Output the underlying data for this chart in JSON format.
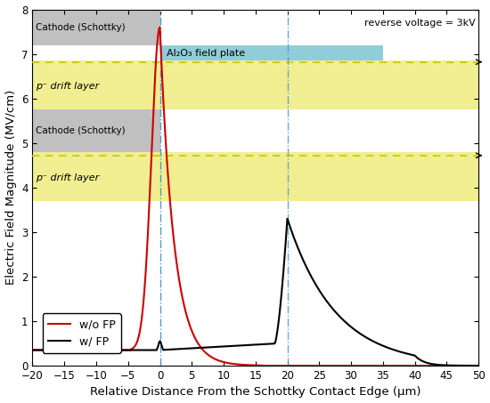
{
  "xlabel": "Relative Distance From the Schottky Contact Edge (μm)",
  "ylabel": "Electric Field Magnitude (MV/cm)",
  "xlim": [
    -20,
    50
  ],
  "ylim": [
    0,
    8
  ],
  "yticks": [
    0,
    1,
    2,
    3,
    4,
    5,
    6,
    7,
    8
  ],
  "xticks": [
    -20,
    -15,
    -10,
    -5,
    0,
    5,
    10,
    15,
    20,
    25,
    30,
    35,
    40,
    45,
    50
  ],
  "reverse_voltage_text": "reverse voltage = 3kV",
  "vline1_x": 0,
  "vline2_x": 20,
  "cathode_upper_ymin": 7.2,
  "cathode_upper_ymax": 8.0,
  "cathode_upper_xmin": -20,
  "cathode_upper_xmax": 0,
  "al2o3_ymin": 6.85,
  "al2o3_ymax": 7.2,
  "al2o3_xmin": 0,
  "al2o3_xmax": 35,
  "yellow_upper_ymin": 5.75,
  "yellow_upper_ymax": 6.85,
  "yellow_upper_dashed": 6.82,
  "cathode_lower_ymin": 4.8,
  "cathode_lower_ymax": 5.75,
  "cathode_lower_xmin": -20,
  "cathode_lower_xmax": 0,
  "yellow_lower_ymin": 3.7,
  "yellow_lower_ymax": 4.8,
  "yellow_lower_dashed": 4.72,
  "gray_color": "#c0c0c0",
  "al2o3_color": "#90cdd8",
  "yellow_color": "#f0ee90",
  "line_wo_fp_color": "#cc0000",
  "line_w_fp_color": "#000000",
  "dashed_line_color": "#c8c800",
  "vline1_color": "#5599cc",
  "vline2_color": "#55aa77",
  "cathode_upper_label": "Cathode (Schottky)",
  "al2o3_label": "Al₂O₃ field plate",
  "yellow_upper_label": "p⁻ drift layer",
  "cathode_lower_label": "Cathode (Schottky)",
  "yellow_lower_label": "p⁻ drift layer",
  "legend_wo": "w/o FP",
  "legend_w": "w/ FP"
}
